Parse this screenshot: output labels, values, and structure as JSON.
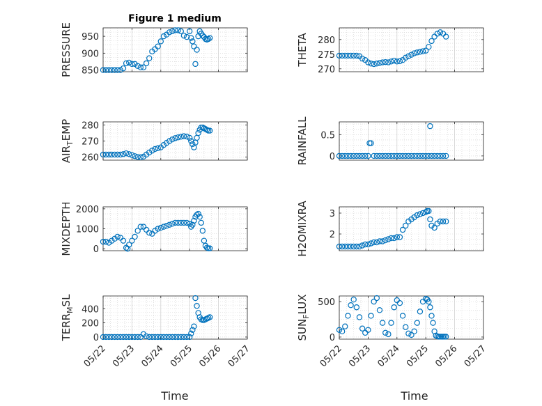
{
  "title": "Figure 1 medium",
  "chart_data": [
    {
      "type": "scatter",
      "ylabel_parts": [
        [
          "PRESSURE",
          ""
        ]
      ],
      "ylim": [
        845,
        975
      ],
      "yticks": [
        850,
        900,
        950
      ],
      "x": [
        0.0,
        0.1,
        0.2,
        0.3,
        0.4,
        0.5,
        0.6,
        0.7,
        0.8,
        0.9,
        1.0,
        1.1,
        1.2,
        1.3,
        1.4,
        1.5,
        1.6,
        1.7,
        1.8,
        1.9,
        2.0,
        2.1,
        2.2,
        2.3,
        2.4,
        2.5,
        2.6,
        2.7,
        2.8,
        2.9,
        3.0,
        3.05,
        3.1,
        3.15,
        3.2,
        3.25,
        3.3,
        3.35,
        3.4,
        3.45,
        3.5,
        3.55,
        3.6,
        3.65,
        3.7
      ],
      "y": [
        850,
        850,
        850,
        850,
        850,
        850,
        850,
        855,
        870,
        872,
        868,
        868,
        862,
        858,
        858,
        870,
        885,
        905,
        912,
        920,
        935,
        950,
        955,
        962,
        965,
        968,
        968,
        965,
        952,
        948,
        965,
        945,
        935,
        920,
        868,
        910,
        950,
        965,
        958,
        952,
        948,
        942,
        940,
        942,
        945
      ]
    },
    {
      "type": "scatter",
      "ylabel_parts": [
        [
          "THETA",
          ""
        ]
      ],
      "ylim": [
        269,
        284
      ],
      "yticks": [
        270,
        275,
        280
      ],
      "x": [
        0.0,
        0.1,
        0.2,
        0.3,
        0.4,
        0.5,
        0.6,
        0.7,
        0.8,
        0.9,
        1.0,
        1.1,
        1.2,
        1.3,
        1.4,
        1.5,
        1.6,
        1.7,
        1.8,
        1.9,
        2.0,
        2.1,
        2.2,
        2.3,
        2.4,
        2.5,
        2.6,
        2.7,
        2.8,
        2.9,
        3.0,
        3.1,
        3.2,
        3.3,
        3.4,
        3.5,
        3.6,
        3.7
      ],
      "y": [
        274.5,
        274.5,
        274.5,
        274.5,
        274.5,
        274.5,
        274.5,
        274.3,
        273.5,
        273,
        272.2,
        271.8,
        271.6,
        271.8,
        272,
        272.2,
        272.3,
        272.2,
        272.5,
        272.8,
        272.5,
        272.6,
        273,
        273.8,
        274.3,
        274.8,
        275.3,
        275.6,
        275.8,
        276,
        276.2,
        277.5,
        279.5,
        281,
        282,
        282.5,
        282,
        281
      ]
    },
    {
      "type": "scatter",
      "ylabel_parts": [
        [
          "AIR",
          ""
        ],
        [
          "T",
          "sub"
        ],
        [
          "EMP",
          ""
        ]
      ],
      "ylim": [
        258,
        282
      ],
      "yticks": [
        260,
        270,
        280
      ],
      "x": [
        0.0,
        0.1,
        0.2,
        0.3,
        0.4,
        0.5,
        0.6,
        0.7,
        0.8,
        0.9,
        1.0,
        1.1,
        1.2,
        1.3,
        1.4,
        1.5,
        1.6,
        1.7,
        1.8,
        1.9,
        2.0,
        2.1,
        2.2,
        2.3,
        2.4,
        2.5,
        2.6,
        2.7,
        2.8,
        2.9,
        3.0,
        3.05,
        3.1,
        3.15,
        3.2,
        3.25,
        3.3,
        3.35,
        3.4,
        3.45,
        3.5,
        3.55,
        3.6,
        3.65,
        3.7
      ],
      "y": [
        261.5,
        261.5,
        261.5,
        261.5,
        261.5,
        261.5,
        261.5,
        261.8,
        262.3,
        261.8,
        261.2,
        260.5,
        260,
        259.8,
        260.2,
        261.5,
        262.8,
        264,
        265,
        265.5,
        266,
        267.5,
        268.8,
        270,
        271,
        271.8,
        272.3,
        272.7,
        273,
        272.8,
        272,
        270,
        268,
        266,
        269,
        272,
        275,
        277,
        278.5,
        278.5,
        278,
        277.5,
        277,
        276.5,
        276.5
      ]
    },
    {
      "type": "scatter",
      "ylabel_parts": [
        [
          "RAINFALL",
          ""
        ]
      ],
      "ylim": [
        -0.1,
        0.8
      ],
      "yticks": [
        0,
        0.5
      ],
      "x": [
        0.0,
        0.1,
        0.2,
        0.3,
        0.4,
        0.5,
        0.6,
        0.7,
        0.8,
        0.9,
        1.0,
        1.05,
        1.1,
        1.2,
        1.3,
        1.4,
        1.5,
        1.6,
        1.7,
        1.8,
        1.9,
        2.0,
        2.1,
        2.2,
        2.3,
        2.4,
        2.5,
        2.6,
        2.7,
        2.8,
        2.9,
        3.0,
        3.1,
        3.15,
        3.2,
        3.3,
        3.4,
        3.5,
        3.6,
        3.7
      ],
      "y": [
        0,
        0,
        0,
        0,
        0,
        0,
        0,
        0,
        0,
        0,
        0,
        0.3,
        0.3,
        0,
        0,
        0,
        0,
        0,
        0,
        0,
        0,
        0,
        0,
        0,
        0,
        0,
        0,
        0,
        0,
        0,
        0,
        0,
        0,
        0.7,
        0,
        0,
        0,
        0,
        0,
        0
      ]
    },
    {
      "type": "scatter",
      "ylabel_parts": [
        [
          "MIXDEPTH",
          ""
        ]
      ],
      "ylim": [
        -100,
        2100
      ],
      "yticks": [
        0,
        1000,
        2000
      ],
      "x": [
        0.0,
        0.1,
        0.2,
        0.3,
        0.4,
        0.5,
        0.6,
        0.7,
        0.8,
        0.85,
        0.9,
        1.0,
        1.1,
        1.2,
        1.3,
        1.4,
        1.5,
        1.6,
        1.7,
        1.8,
        1.9,
        2.0,
        2.1,
        2.2,
        2.3,
        2.4,
        2.5,
        2.6,
        2.7,
        2.8,
        2.9,
        3.0,
        3.05,
        3.1,
        3.15,
        3.2,
        3.25,
        3.3,
        3.35,
        3.4,
        3.45,
        3.5,
        3.55,
        3.6,
        3.65,
        3.7
      ],
      "y": [
        350,
        350,
        300,
        400,
        500,
        600,
        550,
        400,
        50,
        0,
        200,
        400,
        600,
        900,
        1100,
        1100,
        950,
        800,
        750,
        900,
        1000,
        1050,
        1100,
        1150,
        1200,
        1250,
        1300,
        1300,
        1300,
        1300,
        1300,
        1250,
        1100,
        1200,
        1400,
        1600,
        1700,
        1750,
        1600,
        1300,
        900,
        400,
        150,
        50,
        20,
        20
      ]
    },
    {
      "type": "scatter",
      "ylabel_parts": [
        [
          "H2OMIXRA",
          ""
        ]
      ],
      "ylim": [
        1.2,
        3.3
      ],
      "yticks": [
        2,
        3
      ],
      "x": [
        0.0,
        0.1,
        0.2,
        0.3,
        0.4,
        0.5,
        0.6,
        0.7,
        0.8,
        0.9,
        1.0,
        1.1,
        1.2,
        1.3,
        1.4,
        1.5,
        1.6,
        1.7,
        1.8,
        1.9,
        2.0,
        2.1,
        2.2,
        2.3,
        2.4,
        2.5,
        2.6,
        2.7,
        2.8,
        2.9,
        3.0,
        3.05,
        3.1,
        3.15,
        3.2,
        3.3,
        3.4,
        3.5,
        3.6,
        3.7
      ],
      "y": [
        1.4,
        1.4,
        1.4,
        1.4,
        1.4,
        1.4,
        1.4,
        1.4,
        1.45,
        1.5,
        1.5,
        1.55,
        1.6,
        1.6,
        1.65,
        1.65,
        1.7,
        1.75,
        1.8,
        1.8,
        1.85,
        1.85,
        2.2,
        2.4,
        2.6,
        2.7,
        2.8,
        2.9,
        2.95,
        3.0,
        3.05,
        3.1,
        3.1,
        2.7,
        2.4,
        2.3,
        2.5,
        2.6,
        2.6,
        2.6
      ]
    },
    {
      "type": "scatter",
      "ylabel_parts": [
        [
          "TERR",
          ""
        ],
        [
          "M",
          "sub"
        ],
        [
          "SL",
          ""
        ]
      ],
      "ylim": [
        -30,
        580
      ],
      "yticks": [
        0,
        200,
        400
      ],
      "x": [
        0.0,
        0.1,
        0.2,
        0.3,
        0.4,
        0.5,
        0.6,
        0.7,
        0.8,
        0.9,
        1.0,
        1.1,
        1.2,
        1.3,
        1.4,
        1.5,
        1.6,
        1.7,
        1.8,
        1.9,
        2.0,
        2.1,
        2.2,
        2.3,
        2.4,
        2.5,
        2.6,
        2.7,
        2.8,
        2.9,
        3.0,
        3.05,
        3.1,
        3.15,
        3.2,
        3.25,
        3.3,
        3.35,
        3.4,
        3.45,
        3.5,
        3.55,
        3.6,
        3.65,
        3.7
      ],
      "y": [
        0,
        0,
        0,
        0,
        0,
        0,
        0,
        0,
        0,
        0,
        0,
        0,
        0,
        0,
        40,
        10,
        0,
        0,
        0,
        0,
        0,
        0,
        0,
        0,
        0,
        0,
        0,
        0,
        0,
        0,
        0,
        50,
        100,
        150,
        550,
        440,
        340,
        280,
        250,
        240,
        240,
        250,
        260,
        270,
        280
      ]
    },
    {
      "type": "scatter",
      "ylabel_parts": [
        [
          "SUN",
          ""
        ],
        [
          "F",
          "sub"
        ],
        [
          "LUX",
          ""
        ]
      ],
      "ylim": [
        -30,
        580
      ],
      "yticks": [
        0,
        500
      ],
      "x": [
        0.0,
        0.1,
        0.2,
        0.3,
        0.4,
        0.5,
        0.6,
        0.7,
        0.8,
        0.9,
        1.0,
        1.1,
        1.2,
        1.3,
        1.4,
        1.5,
        1.6,
        1.7,
        1.8,
        1.9,
        2.0,
        2.1,
        2.2,
        2.3,
        2.4,
        2.5,
        2.6,
        2.7,
        2.8,
        2.9,
        3.0,
        3.05,
        3.1,
        3.15,
        3.2,
        3.25,
        3.3,
        3.35,
        3.4,
        3.45,
        3.5,
        3.55,
        3.6,
        3.65,
        3.7
      ],
      "y": [
        100,
        80,
        150,
        300,
        450,
        530,
        420,
        280,
        120,
        60,
        100,
        300,
        500,
        550,
        380,
        200,
        60,
        40,
        200,
        420,
        520,
        480,
        300,
        140,
        50,
        30,
        80,
        200,
        360,
        500,
        540,
        530,
        500,
        420,
        300,
        200,
        80,
        20,
        10,
        5,
        5,
        5,
        5,
        5,
        5
      ]
    }
  ],
  "x_axis": {
    "ticks": [
      "05/22",
      "05/23",
      "05/24",
      "05/25",
      "05/26",
      "05/27"
    ],
    "label": "Time"
  },
  "colors": {
    "marker": "#0072BD",
    "axis": "#262626",
    "grid": "#d0d0d0"
  }
}
